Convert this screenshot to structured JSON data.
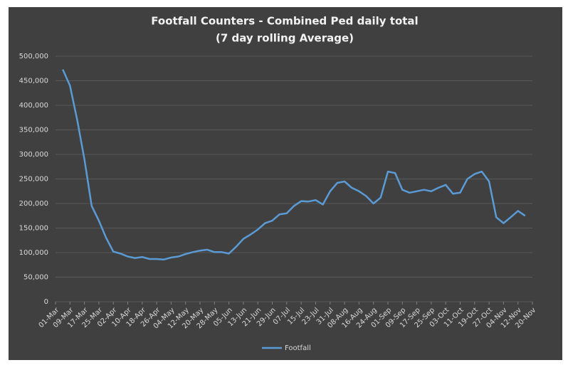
{
  "chart_data": {
    "type": "line",
    "title": [
      "Footfall Counters - Combined Ped daily total",
      "(7 day rolling Average)"
    ],
    "categories": [
      "01-Mar",
      null,
      "09-Mar",
      null,
      "17-Mar",
      null,
      "25-Mar",
      null,
      "02-Apr",
      null,
      "10-Apr",
      null,
      "18-Apr",
      null,
      "26-Apr",
      null,
      "04-May",
      null,
      "12-May",
      null,
      "20-May",
      null,
      "28-May",
      null,
      "05-Jun",
      null,
      "13-Jun",
      null,
      "21-Jun",
      null,
      "29-Jun",
      null,
      "07-Jul",
      null,
      "15-Jul",
      null,
      "23-Jul",
      null,
      "31-Jul",
      null,
      "08-Aug",
      null,
      "16-Aug",
      null,
      "24-Aug",
      null,
      "01-Sep",
      null,
      "09-Sep",
      null,
      "17-Sep",
      null,
      "25-Sep",
      null,
      "03-Oct",
      null,
      "11-Oct",
      null,
      "19-Oct",
      null,
      "27-Oct",
      null,
      "04-Nov",
      null,
      "12-Nov",
      null,
      "20-Nov"
    ],
    "series": [
      {
        "name": "Footfall",
        "color": "#5b9bd5",
        "values": [
          null,
          473000,
          440000,
          370000,
          290000,
          195000,
          165000,
          130000,
          102000,
          98000,
          92000,
          89000,
          91000,
          87000,
          87000,
          86000,
          90000,
          92000,
          97000,
          101000,
          104000,
          106000,
          101000,
          101000,
          98000,
          112000,
          128000,
          137000,
          147000,
          160000,
          165000,
          178000,
          180000,
          195000,
          205000,
          204000,
          207000,
          198000,
          225000,
          242000,
          245000,
          232000,
          225000,
          215000,
          200000,
          212000,
          265000,
          262000,
          228000,
          222000,
          225000,
          228000,
          225000,
          232000,
          238000,
          220000,
          222000,
          250000,
          260000,
          265000,
          245000,
          172000,
          160000,
          172000,
          185000,
          175000,
          null
        ]
      }
    ],
    "ylim": [
      0,
      500000
    ],
    "yticks": [
      0,
      {
        "value": 50000,
        "label": "50,000"
      },
      {
        "value": 100000,
        "label": "100,000"
      },
      {
        "value": 150000,
        "label": "150,000"
      },
      {
        "value": 200000,
        "label": "200,000"
      },
      {
        "value": 250000,
        "label": "250,000"
      },
      {
        "value": 300000,
        "label": "300,000"
      },
      {
        "value": 350000,
        "label": "350,000"
      },
      {
        "value": 400000,
        "label": "400,000"
      },
      {
        "value": 450000,
        "label": "450,000"
      },
      {
        "value": 500000,
        "label": "500,000"
      }
    ],
    "grid": true,
    "legend": "bottom"
  }
}
